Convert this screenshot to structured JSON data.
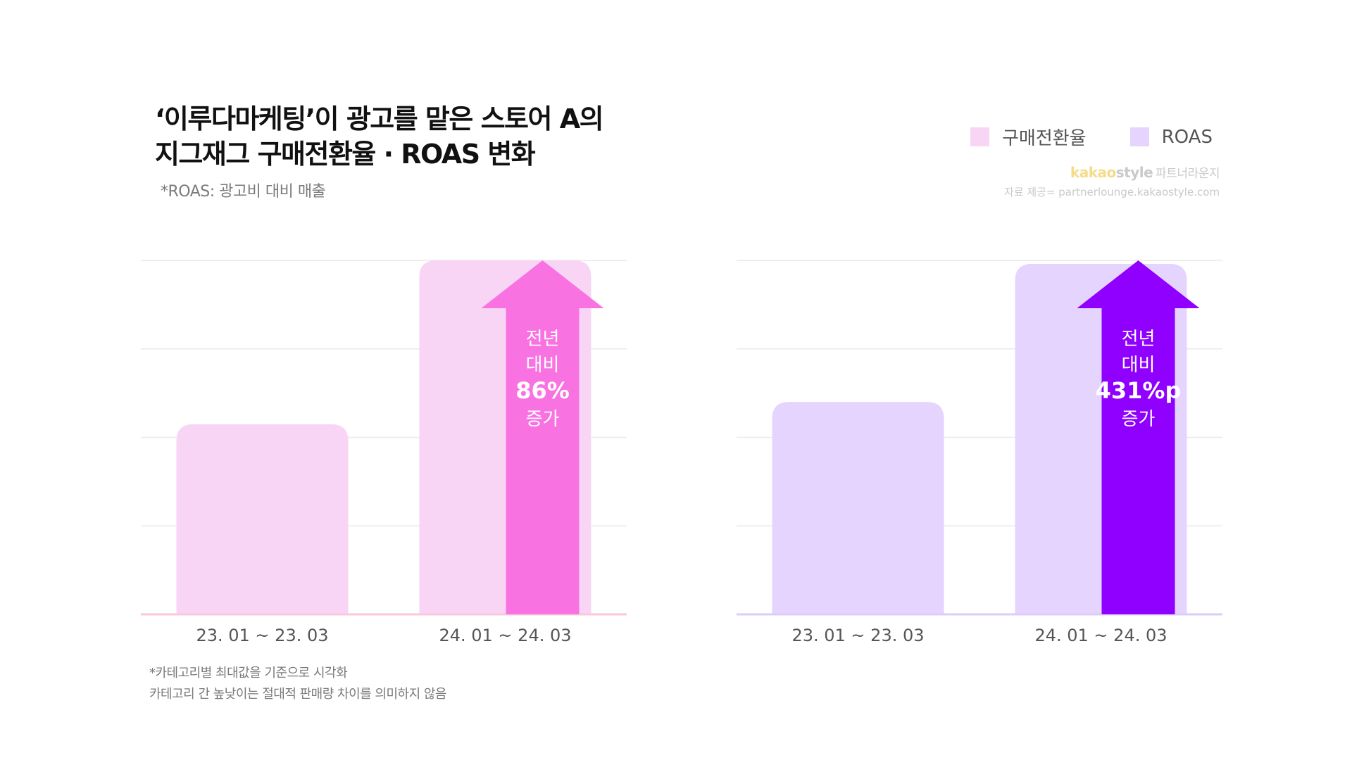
{
  "title_lines": [
    "‘이루다마케팅’이 광고를 맡은 스토어 A의",
    "지그재그 구매전환율 · ROAS 변화"
  ],
  "subtitle": "*ROAS: 광고비 대비 매출",
  "legend": [
    {
      "label": "구매전환율",
      "color": "#f8d5f4"
    },
    {
      "label": "ROAS",
      "color": "#e4d4fe"
    }
  ],
  "brand": {
    "kakao": "kakao",
    "style": "style",
    "suffix": "파트너라운지"
  },
  "source": "자료 제공= partnerlounge.kakaostyle.com",
  "notes": [
    "*카테고리별 최대값을 기준으로 시각화",
    "카테고리 간 높낮이는 절대적 판매량 차이를 의미하지 않음"
  ],
  "colors": {
    "conversion_bar": "#f8d5f4",
    "conversion_arrow": "#f972e2",
    "roas_bar": "#e4d4fe",
    "roas_arrow": "#8f00ff",
    "grid": "#e9e9e9"
  },
  "chart_data": [
    {
      "type": "bar",
      "series_name": "구매전환율",
      "categories": [
        "23. 01 ~ 23. 03",
        "24. 01 ~ 24. 03"
      ],
      "values": [
        0.537,
        1.0
      ],
      "ylim": [
        0,
        1
      ],
      "grid": true,
      "annotation": {
        "lines": [
          "전년",
          "대비",
          "86%",
          "증가"
        ],
        "emphasis_index": 2
      }
    },
    {
      "type": "bar",
      "series_name": "ROAS",
      "categories": [
        "23. 01 ~ 23. 03",
        "24. 01 ~ 24. 03"
      ],
      "values": [
        0.6,
        0.99
      ],
      "ylim": [
        0,
        1
      ],
      "grid": true,
      "annotation": {
        "lines": [
          "전년",
          "대비",
          "431%p",
          "증가"
        ],
        "emphasis_index": 2
      }
    }
  ]
}
